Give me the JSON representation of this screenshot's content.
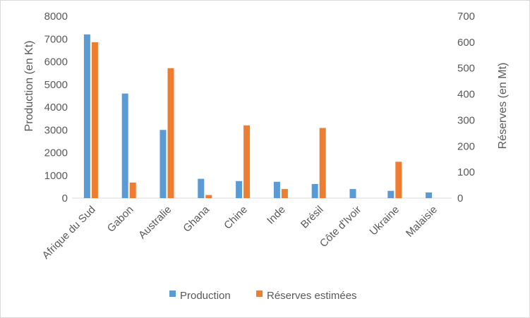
{
  "chart_data": {
    "type": "bar",
    "title": "",
    "categories": [
      "Afrique du Sud",
      "Gabon",
      "Australie",
      "Ghana",
      "Chine",
      "Inde",
      "Brésil",
      "Côte d'Ivoir",
      "Ukraine",
      "Malaisie"
    ],
    "series": [
      {
        "name": "Production",
        "axis": "left",
        "color": "#5b9bd5",
        "values": [
          7200,
          4600,
          3000,
          850,
          750,
          720,
          620,
          400,
          320,
          250
        ]
      },
      {
        "name": "Réserves estimées",
        "axis": "right",
        "color": "#ed7d31",
        "values": [
          600,
          60,
          500,
          12,
          280,
          35,
          270,
          0,
          140,
          0
        ]
      }
    ],
    "ylabel": "Production (en Kt)",
    "ylim": [
      0,
      8000
    ],
    "yticks": [
      "0",
      "1000",
      "2000",
      "3000",
      "4000",
      "5000",
      "6000",
      "7000",
      "8000"
    ],
    "y2label": "Réserves (en Mt)",
    "y2lim": [
      0,
      700
    ],
    "y2ticks": [
      "0",
      "100",
      "200",
      "300",
      "400",
      "500",
      "600",
      "700"
    ],
    "grid": false,
    "legend_position": "bottom"
  }
}
